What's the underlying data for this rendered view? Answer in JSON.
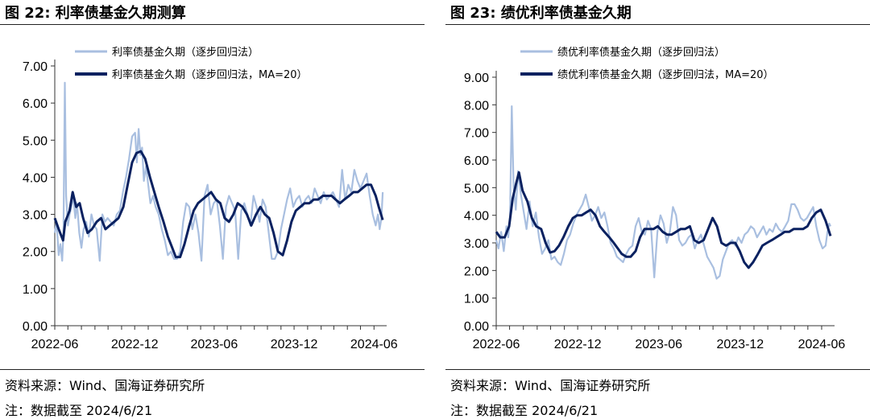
{
  "figures": [
    {
      "title": "图 22:  利率债基金久期测算",
      "source": "资料来源：Wind、国海证券研究所",
      "note": "注：数据截至 2024/6/21"
    },
    {
      "title": "图 23:  绩优利率债基金久期",
      "source": "资料来源：Wind、国海证券研究所",
      "note": "注：数据截至 2024/6/21"
    }
  ],
  "chart_data": [
    {
      "type": "line",
      "title": "利率债基金久期测算",
      "ylim": [
        0,
        7
      ],
      "yticks": [
        "0.00",
        "1.00",
        "2.00",
        "3.00",
        "4.00",
        "5.00",
        "6.00",
        "7.00"
      ],
      "xticks": [
        "2022-06",
        "2022-12",
        "2023-06",
        "2023-12",
        "2024-06"
      ],
      "xlim_months": [
        "2022-06-01",
        "2024-06-30"
      ],
      "legend_position": "top",
      "series": [
        {
          "name": "利率债基金久期（逐步回归法）",
          "color": "#a9bfe0",
          "x": [
            "2022-06-01",
            "2022-06-05",
            "2022-06-10",
            "2022-06-14",
            "2022-06-18",
            "2022-06-21",
            "2022-06-24",
            "2022-06-27",
            "2022-07-01",
            "2022-07-05",
            "2022-07-09",
            "2022-07-13",
            "2022-07-18",
            "2022-07-22",
            "2022-07-27",
            "2022-08-01",
            "2022-08-06",
            "2022-08-12",
            "2022-08-18",
            "2022-08-24",
            "2022-08-30",
            "2022-09-05",
            "2022-09-12",
            "2022-09-18",
            "2022-09-24",
            "2022-09-30",
            "2022-10-07",
            "2022-10-14",
            "2022-10-21",
            "2022-10-28",
            "2022-11-04",
            "2022-11-11",
            "2022-11-18",
            "2022-11-25",
            "2022-12-02",
            "2022-12-06",
            "2022-12-10",
            "2022-12-14",
            "2022-12-18",
            "2022-12-22",
            "2022-12-27",
            "2023-01-01",
            "2023-01-06",
            "2023-01-12",
            "2023-01-18",
            "2023-01-25",
            "2023-02-01",
            "2023-02-08",
            "2023-02-15",
            "2023-02-22",
            "2023-03-01",
            "2023-03-08",
            "2023-03-15",
            "2023-03-22",
            "2023-03-29",
            "2023-04-05",
            "2023-04-12",
            "2023-04-19",
            "2023-04-26",
            "2023-05-03",
            "2023-05-10",
            "2023-05-17",
            "2023-05-24",
            "2023-05-31",
            "2023-06-07",
            "2023-06-14",
            "2023-06-21",
            "2023-06-28",
            "2023-07-05",
            "2023-07-12",
            "2023-07-19",
            "2023-07-26",
            "2023-08-02",
            "2023-08-09",
            "2023-08-16",
            "2023-08-23",
            "2023-08-30",
            "2023-09-06",
            "2023-09-13",
            "2023-09-20",
            "2023-09-27",
            "2023-10-04",
            "2023-10-11",
            "2023-10-18",
            "2023-10-25",
            "2023-11-01",
            "2023-11-08",
            "2023-11-15",
            "2023-11-22",
            "2023-11-29",
            "2023-12-06",
            "2023-12-13",
            "2023-12-20",
            "2023-12-27",
            "2024-01-03",
            "2024-01-10",
            "2024-01-17",
            "2024-01-24",
            "2024-01-31",
            "2024-02-07",
            "2024-02-14",
            "2024-02-21",
            "2024-02-28",
            "2024-03-06",
            "2024-03-13",
            "2024-03-20",
            "2024-03-27",
            "2024-04-03",
            "2024-04-10",
            "2024-04-17",
            "2024-04-24",
            "2024-05-01",
            "2024-05-08",
            "2024-05-15",
            "2024-05-22",
            "2024-05-29",
            "2024-06-05",
            "2024-06-10",
            "2024-06-14",
            "2024-06-18",
            "2024-06-21"
          ],
          "values": [
            2.5,
            2.8,
            1.9,
            2.2,
            1.75,
            2.5,
            6.55,
            3.5,
            2.7,
            3.0,
            3.2,
            3.5,
            2.9,
            3.3,
            2.5,
            2.1,
            2.6,
            2.8,
            2.4,
            3.0,
            2.7,
            2.6,
            1.75,
            3.0,
            2.8,
            2.9,
            2.8,
            2.7,
            3.0,
            3.1,
            3.6,
            4.0,
            4.5,
            5.1,
            5.2,
            4.4,
            5.3,
            4.6,
            4.8,
            3.9,
            4.3,
            3.8,
            3.3,
            3.5,
            3.2,
            3.0,
            2.6,
            2.3,
            1.9,
            2.0,
            1.8,
            1.8,
            2.0,
            2.8,
            3.3,
            3.2,
            2.6,
            3.0,
            2.5,
            1.75,
            3.5,
            3.8,
            3.0,
            3.3,
            3.4,
            2.7,
            1.8,
            3.2,
            3.5,
            3.3,
            3.1,
            1.8,
            3.1,
            3.3,
            3.0,
            2.7,
            3.5,
            3.2,
            2.8,
            3.4,
            3.2,
            2.5,
            1.8,
            1.8,
            2.0,
            2.6,
            3.0,
            3.4,
            3.7,
            3.2,
            3.4,
            3.5,
            3.2,
            3.4,
            3.5,
            3.3,
            3.7,
            3.5,
            3.3,
            3.6,
            3.4,
            3.5,
            3.6,
            3.4,
            3.2,
            4.2,
            3.4,
            3.8,
            3.6,
            4.2,
            3.9,
            3.7,
            3.9,
            4.1,
            3.5,
            3.0,
            2.7,
            3.0,
            2.6,
            2.9,
            3.6
          ]
        },
        {
          "name": "利率债基金久期（逐步回归法，MA=20）",
          "color": "#0a2160",
          "x": [
            "2022-06-01",
            "2022-06-10",
            "2022-06-20",
            "2022-06-25",
            "2022-07-05",
            "2022-07-12",
            "2022-07-20",
            "2022-07-28",
            "2022-08-05",
            "2022-08-15",
            "2022-08-25",
            "2022-09-05",
            "2022-09-15",
            "2022-09-25",
            "2022-10-05",
            "2022-10-15",
            "2022-10-25",
            "2022-11-05",
            "2022-11-15",
            "2022-11-25",
            "2022-12-05",
            "2022-12-15",
            "2022-12-25",
            "2023-01-05",
            "2023-01-15",
            "2023-01-25",
            "2023-02-05",
            "2023-02-15",
            "2023-02-25",
            "2023-03-05",
            "2023-03-15",
            "2023-03-25",
            "2023-04-05",
            "2023-04-15",
            "2023-04-25",
            "2023-05-05",
            "2023-05-15",
            "2023-05-25",
            "2023-06-05",
            "2023-06-15",
            "2023-06-25",
            "2023-07-05",
            "2023-07-15",
            "2023-07-25",
            "2023-08-05",
            "2023-08-15",
            "2023-08-25",
            "2023-09-05",
            "2023-09-15",
            "2023-09-25",
            "2023-10-05",
            "2023-10-15",
            "2023-10-25",
            "2023-11-05",
            "2023-11-15",
            "2023-11-25",
            "2023-12-05",
            "2023-12-15",
            "2023-12-25",
            "2024-01-05",
            "2024-01-15",
            "2024-01-25",
            "2024-02-05",
            "2024-02-15",
            "2024-02-25",
            "2024-03-05",
            "2024-03-15",
            "2024-03-25",
            "2024-04-05",
            "2024-04-15",
            "2024-04-25",
            "2024-05-05",
            "2024-05-15",
            "2024-05-25",
            "2024-06-05",
            "2024-06-12",
            "2024-06-21"
          ],
          "values": [
            2.9,
            2.6,
            2.3,
            2.8,
            3.1,
            3.6,
            3.2,
            3.3,
            2.9,
            2.5,
            2.6,
            2.8,
            2.9,
            2.6,
            2.7,
            2.8,
            2.9,
            3.2,
            3.8,
            4.4,
            4.65,
            4.7,
            4.5,
            4.0,
            3.6,
            3.2,
            2.8,
            2.4,
            2.1,
            1.85,
            1.85,
            2.2,
            2.7,
            3.1,
            3.3,
            3.4,
            3.5,
            3.6,
            3.4,
            3.3,
            2.9,
            2.8,
            3.0,
            3.3,
            3.2,
            3.0,
            2.7,
            3.0,
            3.2,
            3.0,
            2.9,
            2.5,
            2.0,
            1.9,
            2.3,
            2.8,
            3.1,
            3.2,
            3.3,
            3.3,
            3.4,
            3.4,
            3.5,
            3.5,
            3.5,
            3.4,
            3.3,
            3.4,
            3.5,
            3.6,
            3.6,
            3.7,
            3.8,
            3.8,
            3.5,
            3.2,
            2.85
          ]
        }
      ]
    },
    {
      "type": "line",
      "title": "绩优利率债基金久期",
      "ylim": [
        0,
        9
      ],
      "yticks": [
        "0.00",
        "1.00",
        "2.00",
        "3.00",
        "4.00",
        "5.00",
        "6.00",
        "7.00",
        "8.00",
        "9.00"
      ],
      "xticks": [
        "2022-06",
        "2022-12",
        "2023-06",
        "2023-12",
        "2024-06"
      ],
      "xlim_months": [
        "2022-06-01",
        "2024-06-30"
      ],
      "legend_position": "top",
      "series": [
        {
          "name": "绩优利率债基金久期（逐步回归法）",
          "color": "#a9bfe0",
          "x": [
            "2022-06-01",
            "2022-06-06",
            "2022-06-12",
            "2022-06-18",
            "2022-06-24",
            "2022-06-28",
            "2022-07-02",
            "2022-07-06",
            "2022-07-10",
            "2022-07-15",
            "2022-07-20",
            "2022-07-26",
            "2022-08-01",
            "2022-08-08",
            "2022-08-15",
            "2022-08-22",
            "2022-08-29",
            "2022-09-05",
            "2022-09-12",
            "2022-09-19",
            "2022-09-26",
            "2022-10-03",
            "2022-10-10",
            "2022-10-17",
            "2022-10-24",
            "2022-10-31",
            "2022-11-07",
            "2022-11-14",
            "2022-11-21",
            "2022-11-28",
            "2022-12-05",
            "2022-12-12",
            "2022-12-19",
            "2022-12-26",
            "2023-01-02",
            "2023-01-09",
            "2023-01-16",
            "2023-01-23",
            "2023-01-30",
            "2023-02-06",
            "2023-02-13",
            "2023-02-20",
            "2023-02-27",
            "2023-03-06",
            "2023-03-13",
            "2023-03-20",
            "2023-03-27",
            "2023-04-03",
            "2023-04-10",
            "2023-04-17",
            "2023-04-24",
            "2023-05-01",
            "2023-05-08",
            "2023-05-15",
            "2023-05-22",
            "2023-05-29",
            "2023-06-05",
            "2023-06-12",
            "2023-06-19",
            "2023-06-26",
            "2023-07-03",
            "2023-07-10",
            "2023-07-17",
            "2023-07-24",
            "2023-07-31",
            "2023-08-07",
            "2023-08-14",
            "2023-08-21",
            "2023-08-28",
            "2023-09-04",
            "2023-09-11",
            "2023-09-18",
            "2023-09-25",
            "2023-10-02",
            "2023-10-09",
            "2023-10-16",
            "2023-10-23",
            "2023-10-30",
            "2023-11-06",
            "2023-11-13",
            "2023-11-20",
            "2023-11-27",
            "2023-12-04",
            "2023-12-11",
            "2023-12-18",
            "2023-12-25",
            "2024-01-01",
            "2024-01-08",
            "2024-01-15",
            "2024-01-22",
            "2024-01-29",
            "2024-02-05",
            "2024-02-12",
            "2024-02-19",
            "2024-02-26",
            "2024-03-04",
            "2024-03-11",
            "2024-03-18",
            "2024-03-25",
            "2024-04-01",
            "2024-04-08",
            "2024-04-15",
            "2024-04-22",
            "2024-04-29",
            "2024-05-06",
            "2024-05-13",
            "2024-05-20",
            "2024-05-27",
            "2024-06-03",
            "2024-06-10",
            "2024-06-14",
            "2024-06-18",
            "2024-06-21"
          ],
          "values": [
            3.1,
            2.8,
            3.4,
            2.7,
            3.6,
            3.2,
            3.9,
            7.95,
            5.0,
            4.2,
            5.6,
            4.8,
            4.2,
            3.5,
            4.5,
            3.6,
            4.1,
            3.2,
            2.6,
            2.8,
            3.1,
            2.4,
            2.5,
            2.3,
            2.2,
            2.6,
            3.1,
            3.3,
            3.7,
            4.0,
            4.2,
            4.4,
            4.75,
            4.3,
            3.8,
            4.0,
            4.3,
            3.9,
            4.1,
            3.6,
            3.0,
            2.8,
            2.5,
            2.4,
            2.3,
            2.6,
            2.8,
            2.9,
            3.6,
            3.9,
            3.4,
            3.3,
            3.8,
            3.5,
            1.75,
            3.4,
            4.0,
            3.7,
            3.0,
            3.4,
            4.3,
            4.0,
            3.1,
            2.9,
            3.0,
            3.2,
            3.3,
            2.8,
            3.1,
            3.3,
            2.9,
            2.5,
            2.3,
            2.1,
            1.7,
            1.8,
            2.4,
            2.7,
            3.0,
            3.1,
            2.9,
            3.2,
            3.0,
            3.3,
            3.4,
            3.6,
            3.5,
            3.2,
            3.4,
            3.6,
            3.3,
            3.5,
            3.4,
            3.7,
            3.5,
            3.4,
            3.6,
            3.8,
            4.4,
            4.4,
            4.2,
            3.9,
            3.8,
            3.9,
            4.1,
            4.3,
            3.6,
            3.1,
            2.8,
            2.9,
            3.4,
            3.7,
            3.6
          ]
        },
        {
          "name": "绩优利率债基金久期（逐步回归法，MA=20）",
          "color": "#0a2160",
          "x": [
            "2022-06-01",
            "2022-06-10",
            "2022-06-20",
            "2022-06-30",
            "2022-07-08",
            "2022-07-15",
            "2022-07-22",
            "2022-07-30",
            "2022-08-10",
            "2022-08-20",
            "2022-08-30",
            "2022-09-10",
            "2022-09-20",
            "2022-09-30",
            "2022-10-10",
            "2022-10-20",
            "2022-10-30",
            "2022-11-10",
            "2022-11-20",
            "2022-11-30",
            "2022-12-10",
            "2022-12-20",
            "2022-12-30",
            "2023-01-10",
            "2023-01-20",
            "2023-01-30",
            "2023-02-10",
            "2023-02-20",
            "2023-03-01",
            "2023-03-10",
            "2023-03-20",
            "2023-03-30",
            "2023-04-10",
            "2023-04-20",
            "2023-04-30",
            "2023-05-10",
            "2023-05-20",
            "2023-05-30",
            "2023-06-10",
            "2023-06-20",
            "2023-06-30",
            "2023-07-10",
            "2023-07-20",
            "2023-07-30",
            "2023-08-10",
            "2023-08-20",
            "2023-08-30",
            "2023-09-10",
            "2023-09-20",
            "2023-09-30",
            "2023-10-10",
            "2023-10-20",
            "2023-10-30",
            "2023-11-10",
            "2023-11-20",
            "2023-11-30",
            "2023-12-10",
            "2023-12-20",
            "2023-12-30",
            "2024-01-10",
            "2024-01-20",
            "2024-01-30",
            "2024-02-10",
            "2024-02-20",
            "2024-03-01",
            "2024-03-10",
            "2024-03-20",
            "2024-03-30",
            "2024-04-10",
            "2024-04-20",
            "2024-04-30",
            "2024-05-10",
            "2024-05-20",
            "2024-05-30",
            "2024-06-10",
            "2024-06-21"
          ],
          "values": [
            3.4,
            3.2,
            3.2,
            3.6,
            4.6,
            5.1,
            5.55,
            4.9,
            4.5,
            3.9,
            3.6,
            3.5,
            3.0,
            2.65,
            2.7,
            2.9,
            3.2,
            3.6,
            3.9,
            4.0,
            4.0,
            4.1,
            4.2,
            4.0,
            3.6,
            3.4,
            3.2,
            3.0,
            2.8,
            2.6,
            2.5,
            2.5,
            2.7,
            3.2,
            3.5,
            3.5,
            3.5,
            3.6,
            3.4,
            3.3,
            3.3,
            3.4,
            3.5,
            3.5,
            3.6,
            3.1,
            3.0,
            3.1,
            3.5,
            3.9,
            3.6,
            3.0,
            2.9,
            3.0,
            3.0,
            2.7,
            2.3,
            2.1,
            2.3,
            2.6,
            2.9,
            3.0,
            3.1,
            3.2,
            3.3,
            3.4,
            3.4,
            3.5,
            3.5,
            3.5,
            3.6,
            3.9,
            4.1,
            4.2,
            3.8,
            3.25
          ]
        }
      ]
    }
  ]
}
